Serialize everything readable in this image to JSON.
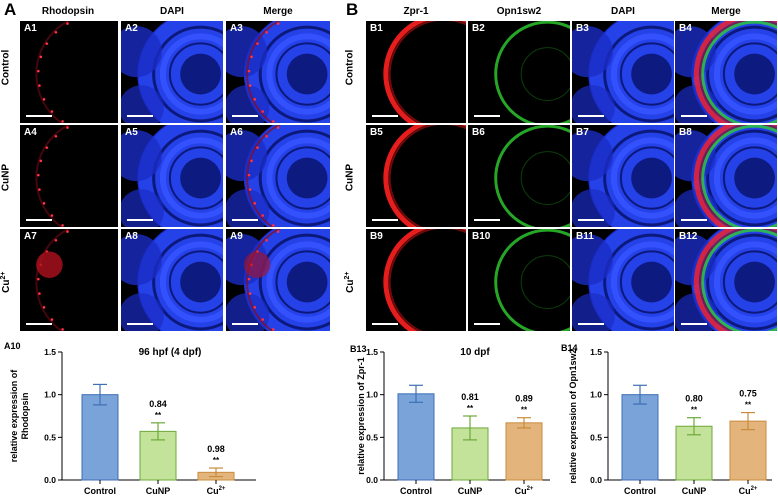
{
  "figure": {
    "section_a": "A",
    "section_b": "B",
    "a_columns": [
      "Rhodopsin",
      "DAPI",
      "Merge"
    ],
    "b_columns": [
      "Zpr-1",
      "Opn1sw2",
      "DAPI",
      "Merge"
    ],
    "rows": [
      "Control",
      "CuNP",
      "Cu2+"
    ],
    "a_panels": [
      "A1",
      "A2",
      "A3",
      "A4",
      "A5",
      "A6",
      "A7",
      "A8",
      "A9"
    ],
    "b_panels": [
      "B1",
      "B2",
      "B3",
      "B4",
      "B5",
      "B6",
      "B7",
      "B8",
      "B9",
      "B10",
      "B11",
      "B12"
    ]
  },
  "colors": {
    "control": "#7aa3d9",
    "cunp": "#c4e39a",
    "cu": "#e3b57d",
    "control_err": "#3d6fb4",
    "cunp_err": "#6da83a",
    "cu_err": "#c98b3d"
  },
  "chart_data": [
    {
      "id": "A10",
      "type": "bar",
      "title": "96 hpf (4 dpf)",
      "ylabel": "relative expression of Rhodopsin",
      "categories": [
        "Control",
        "CuNP",
        "Cu2+"
      ],
      "values": [
        1.0,
        0.57,
        0.09
      ],
      "errors": [
        0.12,
        0.1,
        0.05
      ],
      "ylim": [
        0,
        1.5
      ],
      "yticks": [
        "0.0",
        "0.5",
        "1.0",
        "1.5"
      ],
      "annotations": [
        {
          "category": "CuNP",
          "value": "0.84",
          "sig": "**"
        },
        {
          "category": "Cu2+",
          "value": "0.98",
          "sig": "**"
        }
      ]
    },
    {
      "id": "B13",
      "type": "bar",
      "title": "10 dpf",
      "ylabel": "relative expression of Zpr-1",
      "categories": [
        "Control",
        "CuNP",
        "Cu2+"
      ],
      "values": [
        1.01,
        0.61,
        0.67
      ],
      "errors": [
        0.1,
        0.14,
        0.06
      ],
      "ylim": [
        0,
        1.5
      ],
      "yticks": [
        "0.0",
        "0.5",
        "1.0",
        "1.5"
      ],
      "annotations": [
        {
          "category": "CuNP",
          "value": "0.81",
          "sig": "**"
        },
        {
          "category": "Cu2+",
          "value": "0.89",
          "sig": "**"
        }
      ]
    },
    {
      "id": "B14",
      "type": "bar",
      "title": "",
      "ylabel": "relative expression of Opn1sw2",
      "categories": [
        "Control",
        "CuNP",
        "Cu2+"
      ],
      "values": [
        1.0,
        0.63,
        0.69
      ],
      "errors": [
        0.11,
        0.1,
        0.1
      ],
      "ylim": [
        0,
        1.5
      ],
      "yticks": [
        "0.0",
        "0.5",
        "1.0",
        "1.5"
      ],
      "annotations": [
        {
          "category": "CuNP",
          "value": "0.80",
          "sig": "**"
        },
        {
          "category": "Cu2+",
          "value": "0.75",
          "sig": "**"
        }
      ]
    }
  ]
}
